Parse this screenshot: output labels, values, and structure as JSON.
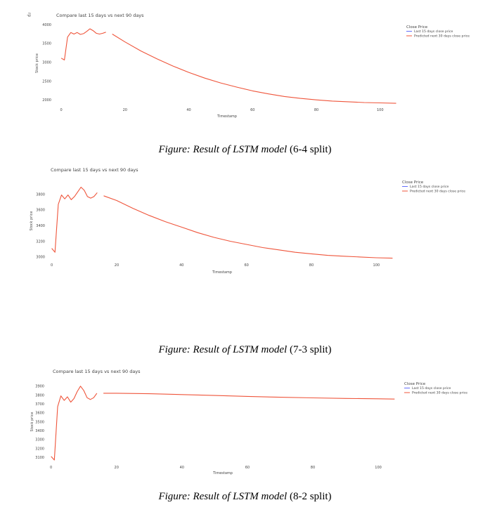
{
  "corner_mark": "rp",
  "chart_data": [
    {
      "type": "line",
      "title": "Compare last 15 days vs next 90 days",
      "xlabel": "Timestamp",
      "ylabel": "Stock price",
      "xlim": [
        -2,
        106
      ],
      "ylim": [
        1930,
        4020
      ],
      "xticks": [
        0,
        20,
        40,
        60,
        80,
        100
      ],
      "yticks": [
        2000,
        2500,
        3000,
        3500,
        4000
      ],
      "grid": false,
      "legend_title": "Close Price",
      "legend_position": "top-right",
      "series": [
        {
          "name": "Last 15 days close price",
          "color": "#636efa",
          "x": [],
          "y": []
        },
        {
          "name": "Predicted next 30 days close price",
          "color": "#ef553b",
          "x": [
            0,
            1,
            2,
            3,
            4,
            5,
            6,
            7,
            8,
            9,
            10,
            11,
            12,
            13,
            14,
            15
          ],
          "y": [
            3110,
            3060,
            3670,
            3790,
            3750,
            3790,
            3740,
            3760,
            3820,
            3890,
            3840,
            3770,
            3750,
            3770,
            3800,
            null
          ]
        },
        {
          "name": "",
          "color": "#ef553b",
          "x": [
            16,
            20,
            25,
            30,
            35,
            40,
            45,
            50,
            55,
            60,
            65,
            70,
            75,
            80,
            85,
            90,
            95,
            100,
            105
          ],
          "y": [
            3750,
            3540,
            3300,
            3090,
            2900,
            2730,
            2580,
            2450,
            2340,
            2240,
            2160,
            2090,
            2040,
            2000,
            1970,
            1950,
            1930,
            1920,
            1910
          ]
        }
      ]
    },
    {
      "type": "line",
      "title": "Compare last 15 days vs next 90 days",
      "xlabel": "Timestamp",
      "ylabel": "Stock price",
      "xlim": [
        -1,
        106
      ],
      "ylim": [
        2990,
        3930
      ],
      "xticks": [
        0,
        20,
        40,
        60,
        80,
        100
      ],
      "yticks": [
        3000,
        3200,
        3400,
        3600,
        3800
      ],
      "grid": false,
      "legend_title": "Close Price",
      "legend_position": "top-right",
      "series": [
        {
          "name": "Last 15 days close price",
          "color": "#636efa",
          "x": [],
          "y": []
        },
        {
          "name": "Predicted next 30 days close price",
          "color": "#ef553b",
          "x": [
            0,
            1,
            2,
            3,
            4,
            5,
            6,
            7,
            8,
            9,
            10,
            11,
            12,
            13,
            14
          ],
          "y": [
            3110,
            3060,
            3670,
            3790,
            3740,
            3790,
            3730,
            3770,
            3830,
            3890,
            3850,
            3770,
            3750,
            3770,
            3820
          ]
        },
        {
          "name": "",
          "color": "#ef553b",
          "x": [
            16,
            20,
            25,
            30,
            35,
            40,
            45,
            50,
            55,
            60,
            65,
            70,
            75,
            80,
            85,
            90,
            95,
            100,
            105
          ],
          "y": [
            3780,
            3720,
            3620,
            3530,
            3450,
            3380,
            3310,
            3250,
            3200,
            3160,
            3120,
            3090,
            3060,
            3040,
            3020,
            3010,
            3000,
            2990,
            2985
          ]
        }
      ]
    },
    {
      "type": "line",
      "title": "Compare last 15 days vs next 90 days",
      "xlabel": "Timestamp",
      "ylabel": "Stock price",
      "xlim": [
        -1,
        106
      ],
      "ylim": [
        3070,
        3930
      ],
      "xticks": [
        0,
        20,
        40,
        60,
        80,
        100
      ],
      "yticks": [
        3100,
        3200,
        3300,
        3400,
        3500,
        3600,
        3700,
        3800,
        3900
      ],
      "grid": false,
      "legend_title": "Close Price",
      "legend_position": "top-right",
      "series": [
        {
          "name": "Last 15 days close price",
          "color": "#636efa",
          "x": [],
          "y": []
        },
        {
          "name": "Predicted next 30 days close price",
          "color": "#ef553b",
          "x": [
            0,
            1,
            2,
            3,
            4,
            5,
            6,
            7,
            8,
            9,
            10,
            11,
            12,
            13,
            14
          ],
          "y": [
            3110,
            3070,
            3670,
            3790,
            3740,
            3780,
            3720,
            3760,
            3840,
            3900,
            3850,
            3770,
            3750,
            3770,
            3820
          ]
        },
        {
          "name": "",
          "color": "#ef553b",
          "x": [
            16,
            20,
            30,
            40,
            50,
            60,
            70,
            80,
            90,
            100,
            105
          ],
          "y": [
            3820,
            3820,
            3815,
            3805,
            3795,
            3785,
            3775,
            3768,
            3762,
            3758,
            3755
          ]
        }
      ]
    }
  ],
  "captions": [
    {
      "italic": "Figure: Result of LSTM model",
      "plain": " (6-4 split)"
    },
    {
      "italic": "Figure: Result of LSTM model",
      "plain": " (7-3 split)"
    },
    {
      "italic": "Figure: Result of LSTM model",
      "plain": " (8-2 split)"
    }
  ]
}
